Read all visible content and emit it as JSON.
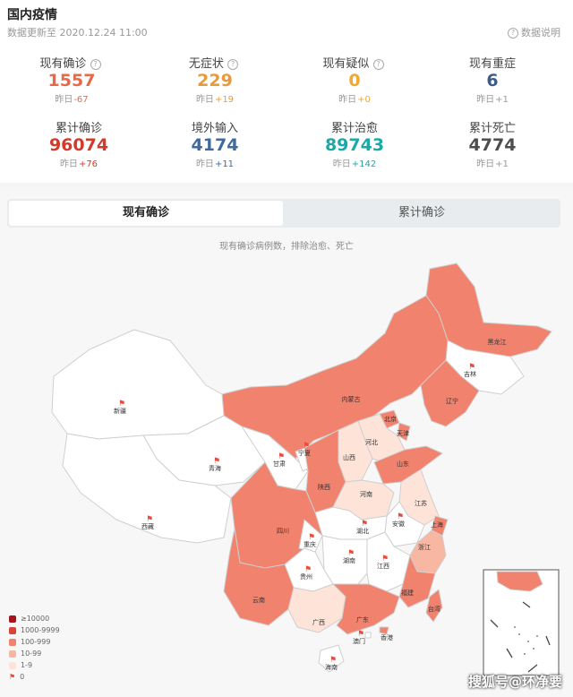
{
  "header": {
    "title": "国内疫情",
    "update_text": "数据更新至 2020.12.24 11:00",
    "explain_label": "数据说明"
  },
  "stats": [
    {
      "label": "现有确诊",
      "value": "1557",
      "delta_prefix": "昨日",
      "delta": "-67",
      "color": "#e8694a",
      "delta_color": "#e8694a",
      "help": true
    },
    {
      "label": "无症状",
      "value": "229",
      "delta_prefix": "昨日",
      "delta": "+19",
      "color": "#e89a3c",
      "delta_color": "#e89a3c",
      "help": true
    },
    {
      "label": "现有疑似",
      "value": "0",
      "delta_prefix": "昨日",
      "delta": "+0",
      "color": "#f0a830",
      "delta_color": "#f0a830",
      "help": true
    },
    {
      "label": "现有重症",
      "value": "6",
      "delta_prefix": "昨日",
      "delta": "+1",
      "color": "#3e5c8a",
      "delta_color": "#999999",
      "help": false
    },
    {
      "label": "累计确诊",
      "value": "96074",
      "delta_prefix": "昨日",
      "delta": "+76",
      "color": "#d33a2c",
      "delta_color": "#d33a2c",
      "help": false
    },
    {
      "label": "境外输入",
      "value": "4174",
      "delta_prefix": "昨日",
      "delta": "+11",
      "color": "#3e6a9e",
      "delta_color": "#3e6a9e",
      "help": false
    },
    {
      "label": "累计治愈",
      "value": "89743",
      "delta_prefix": "昨日",
      "delta": "+142",
      "color": "#1aa8a8",
      "delta_color": "#1aa8a8",
      "help": false
    },
    {
      "label": "累计死亡",
      "value": "4774",
      "delta_prefix": "昨日",
      "delta": "+1",
      "color": "#4d4d4d",
      "delta_color": "#999999",
      "help": false
    }
  ],
  "tabs": {
    "active": "现有确诊",
    "inactive": "累计确诊"
  },
  "map": {
    "note": "现有确诊病例数，排除治愈、死亡",
    "colors": {
      "level_10000": "#a8141b",
      "level_1000": "#d9443a",
      "level_100": "#f0826e",
      "level_10": "#f8b7a3",
      "level_1": "#fde3d8",
      "level_0": "#ffffff"
    },
    "provinces": [
      {
        "name": "黑龙江",
        "level": "level_100"
      },
      {
        "name": "吉林",
        "level": "level_0"
      },
      {
        "name": "辽宁",
        "level": "level_100"
      },
      {
        "name": "内蒙古",
        "level": "level_100"
      },
      {
        "name": "北京",
        "level": "level_100"
      },
      {
        "name": "天津",
        "level": "level_100"
      },
      {
        "name": "河北",
        "level": "level_1"
      },
      {
        "name": "山西",
        "level": "level_1"
      },
      {
        "name": "山东",
        "level": "level_100"
      },
      {
        "name": "新疆",
        "level": "level_0"
      },
      {
        "name": "青海",
        "level": "level_0"
      },
      {
        "name": "西藏",
        "level": "level_0"
      },
      {
        "name": "甘肃",
        "level": "level_0"
      },
      {
        "name": "宁夏",
        "level": "level_0"
      },
      {
        "name": "陕西",
        "level": "level_100"
      },
      {
        "name": "河南",
        "level": "level_1"
      },
      {
        "name": "江苏",
        "level": "level_1"
      },
      {
        "name": "上海",
        "level": "level_100"
      },
      {
        "name": "安徽",
        "level": "level_0"
      },
      {
        "name": "湖北",
        "level": "level_0"
      },
      {
        "name": "四川",
        "level": "level_100"
      },
      {
        "name": "重庆",
        "level": "level_0"
      },
      {
        "name": "浙江",
        "level": "level_10"
      },
      {
        "name": "湖南",
        "level": "level_0"
      },
      {
        "name": "江西",
        "level": "level_0"
      },
      {
        "name": "贵州",
        "level": "level_0"
      },
      {
        "name": "福建",
        "level": "level_100"
      },
      {
        "name": "云南",
        "level": "level_100"
      },
      {
        "name": "广西",
        "level": "level_1"
      },
      {
        "name": "广东",
        "level": "level_100"
      },
      {
        "name": "台湾",
        "level": "level_100"
      },
      {
        "name": "香港",
        "level": "level_100"
      },
      {
        "name": "澳门",
        "level": "level_0"
      },
      {
        "name": "海南",
        "level": "level_0"
      }
    ],
    "legend": [
      {
        "label": "≥10000",
        "color": "#a8141b"
      },
      {
        "label": "1000-9999",
        "color": "#d9443a"
      },
      {
        "label": "100-999",
        "color": "#f0826e"
      },
      {
        "label": "10-99",
        "color": "#f8b7a3"
      },
      {
        "label": "1-9",
        "color": "#fde3d8"
      },
      {
        "label": "0",
        "color": "#e74c3c",
        "flag": true
      }
    ]
  },
  "watermark": "搜狐号@环净要"
}
